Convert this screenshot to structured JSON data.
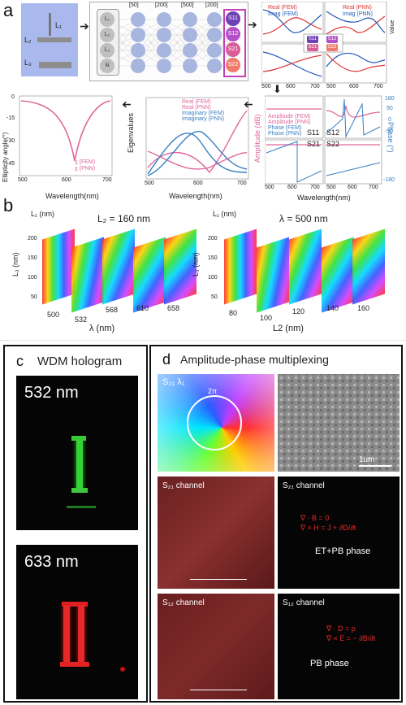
{
  "panels": {
    "a": {
      "letter": "a"
    },
    "b": {
      "letter": "b"
    },
    "c": {
      "letter": "c",
      "title": "WDM hologram",
      "top_label": "532 nm",
      "bottom_label": "633 nm"
    },
    "d": {
      "letter": "d",
      "title": "Amplitude-phase multiplexing"
    }
  },
  "structure": {
    "l1": "L₁",
    "l2": "L₂",
    "l3": "L₃"
  },
  "network": {
    "layers": [
      "[50]",
      "[200]",
      "[500]",
      "[200]"
    ],
    "inputs": [
      "L₁",
      "L₂",
      "L₃",
      "λi"
    ],
    "outputs": [
      "S11",
      "S12",
      "S21",
      "S22"
    ],
    "output_colors": [
      "#6f3fb6",
      "#b44fc7",
      "#d95b98",
      "#f07b6d"
    ]
  },
  "value_plot": {
    "legend1": [
      "Real (FEM)",
      "Imag (FEM)"
    ],
    "legend2": [
      "Real (PNN)",
      "Imag (PNN)"
    ],
    "ylabel": "Value",
    "xticks": [
      "500",
      "600",
      "700",
      "500",
      "600",
      "700"
    ],
    "s_labels": [
      "S11",
      "S21",
      "S12",
      "S22"
    ]
  },
  "ellipticity": {
    "ylabel": "Ellipticity angle(°)",
    "xlabel": "Wavelength(nm)",
    "legend": [
      "χ (FEM)",
      "χ (PNN)"
    ],
    "yticks": [
      "0",
      "-15",
      "-30",
      "-45"
    ],
    "xticks": [
      "500",
      "600",
      "700"
    ]
  },
  "eigen": {
    "ylabel": "Eigenvalues",
    "xlabel": "Wavelength(nm)",
    "legend": [
      "Real (FEM)",
      "Real (PNN)",
      "Imaginary (FEM)",
      "Imaginary (PNN)"
    ],
    "xticks": [
      "500",
      "600",
      "700"
    ]
  },
  "amp_phase": {
    "ylabel_left": "Amplitude (dB)",
    "ylabel_right": "Phase (°)",
    "xlabel": "Wavelength(nm)",
    "legend": [
      "Amplitude (FEM)",
      "Amplitude (PNN)",
      "Phase (FEM)",
      "Phase (PNN)"
    ],
    "s_labels": [
      "S11",
      "S12",
      "S21",
      "S22"
    ],
    "xticks": [
      "500",
      "600",
      "700",
      "500",
      "600",
      "700"
    ],
    "right_ticks": [
      "180",
      "90",
      "0",
      "-90",
      "-180"
    ]
  },
  "panel_b": {
    "left": {
      "header": "L₂ = 160 nm",
      "xlabel": "λ (nm)",
      "ticks": [
        "500",
        "532",
        "568",
        "610",
        "658"
      ],
      "l1": "L₁ (nm)",
      "l3": "L₃ (nm)",
      "zt": [
        "200",
        "150",
        "100",
        "50"
      ]
    },
    "right": {
      "header": "λ = 500 nm",
      "xlabel": "L2 (nm)",
      "ticks": [
        "80",
        "100",
        "120",
        "140",
        "160"
      ],
      "l1": "L₁ (nm)",
      "l3": "L₃ (nm)",
      "zt": [
        "200",
        "150",
        "100",
        "50"
      ]
    }
  },
  "panel_d": {
    "tl_label": "S₂₁ λ₁",
    "two_pi": "2π",
    "scale": "1um",
    "s21_left": "S₂₁ channel",
    "s21_right": "S₂₁ channel",
    "eq1a": "∇ · B = 0",
    "eq1b": "∇ × H = J + ∂D/∂t",
    "mid_caption": "ET+PB phase",
    "s12_left": "S₁₂ channel",
    "s12_right": "S₁₂ channel",
    "eq2a": "∇ · D = ρ",
    "eq2b": "∇ × E = − ∂B/∂t",
    "bot_caption": "PB phase"
  }
}
